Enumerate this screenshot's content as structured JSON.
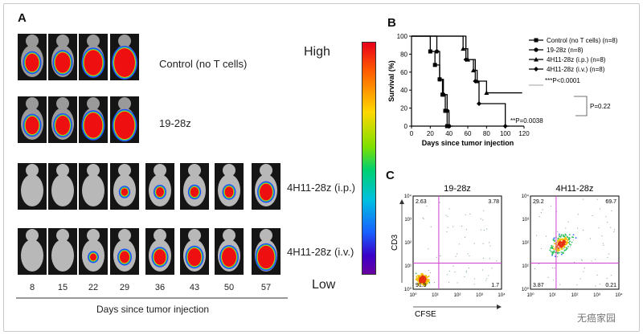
{
  "panels": {
    "a": "A",
    "b": "B",
    "c": "C"
  },
  "panel_a": {
    "rows": [
      {
        "label": "Control (no T cells)",
        "count": 4
      },
      {
        "label": "19-28z",
        "count": 4
      },
      {
        "label": "4H11-28z (i.p.)",
        "count": 8
      },
      {
        "label": "4H11-28z (i.v.)",
        "count": 8
      }
    ],
    "days": [
      "8",
      "15",
      "22",
      "29",
      "36",
      "43",
      "50",
      "57"
    ],
    "x_axis_label": "Days since tumor injection"
  },
  "colorbar": {
    "high": "High",
    "low": "Low"
  },
  "chart_data": [
    {
      "type": "line",
      "title": "",
      "xlabel": "Days since tumor injection",
      "ylabel": "Survival (%)",
      "xlim": [
        0,
        120
      ],
      "ylim": [
        0,
        100
      ],
      "xticks": [
        "0",
        "20",
        "40",
        "60",
        "80",
        "100",
        "120"
      ],
      "yticks": [
        "0",
        "20",
        "40",
        "60",
        "80",
        "100"
      ],
      "series": [
        {
          "name": "Control (no T cells) (n=8)",
          "marker": "square",
          "points": [
            [
              0,
              100
            ],
            [
              20,
              100
            ],
            [
              20,
              83
            ],
            [
              25,
              83
            ],
            [
              25,
              68
            ],
            [
              30,
              68
            ],
            [
              30,
              52
            ],
            [
              33,
              52
            ],
            [
              33,
              35
            ],
            [
              36,
              35
            ],
            [
              36,
              17
            ],
            [
              38,
              17
            ],
            [
              38,
              0
            ],
            [
              42,
              0
            ]
          ]
        },
        {
          "name": "19-28z (n=8)",
          "marker": "circle",
          "points": [
            [
              0,
              100
            ],
            [
              27,
              100
            ],
            [
              27,
              83
            ],
            [
              30,
              83
            ],
            [
              30,
              52
            ],
            [
              34,
              52
            ],
            [
              34,
              35
            ],
            [
              38,
              35
            ],
            [
              38,
              17
            ],
            [
              40,
              17
            ],
            [
              40,
              0
            ],
            [
              44,
              0
            ]
          ]
        },
        {
          "name": "4H11-28z (i.p.) (n=8)",
          "marker": "triangle",
          "points": [
            [
              0,
              100
            ],
            [
              55,
              100
            ],
            [
              55,
              86
            ],
            [
              60,
              86
            ],
            [
              60,
              74
            ],
            [
              66,
              74
            ],
            [
              66,
              62
            ],
            [
              70,
              62
            ],
            [
              70,
              50
            ],
            [
              80,
              50
            ],
            [
              80,
              37
            ],
            [
              118,
              37
            ]
          ]
        },
        {
          "name": "4H11-28z (i.v.) (n=8)",
          "marker": "diamond",
          "points": [
            [
              0,
              100
            ],
            [
              58,
              100
            ],
            [
              58,
              74
            ],
            [
              68,
              74
            ],
            [
              68,
              50
            ],
            [
              72,
              50
            ],
            [
              72,
              25
            ],
            [
              100,
              25
            ],
            [
              100,
              0
            ],
            [
              104,
              0
            ]
          ]
        }
      ],
      "annotations": [
        "***P<0.0001",
        "P=0.22",
        "**P=0.0038"
      ]
    },
    {
      "type": "scatter",
      "title": "19-28z",
      "xlabel": "CFSE",
      "ylabel": "CD3",
      "quadrants": {
        "upper_left": "2.63",
        "upper_right": "3.78",
        "lower_left": "91.9",
        "lower_right": "1.7"
      }
    },
    {
      "type": "scatter",
      "title": "4H11-28z",
      "xlabel": "CFSE",
      "ylabel": "CD3",
      "quadrants": {
        "upper_left": "29.2",
        "upper_right": "69.7",
        "lower_left": "3.87",
        "lower_right": "0.21"
      }
    }
  ],
  "watermark": "无癌家园",
  "colors": {
    "gate": "#d040d0",
    "curve": "#000000"
  }
}
